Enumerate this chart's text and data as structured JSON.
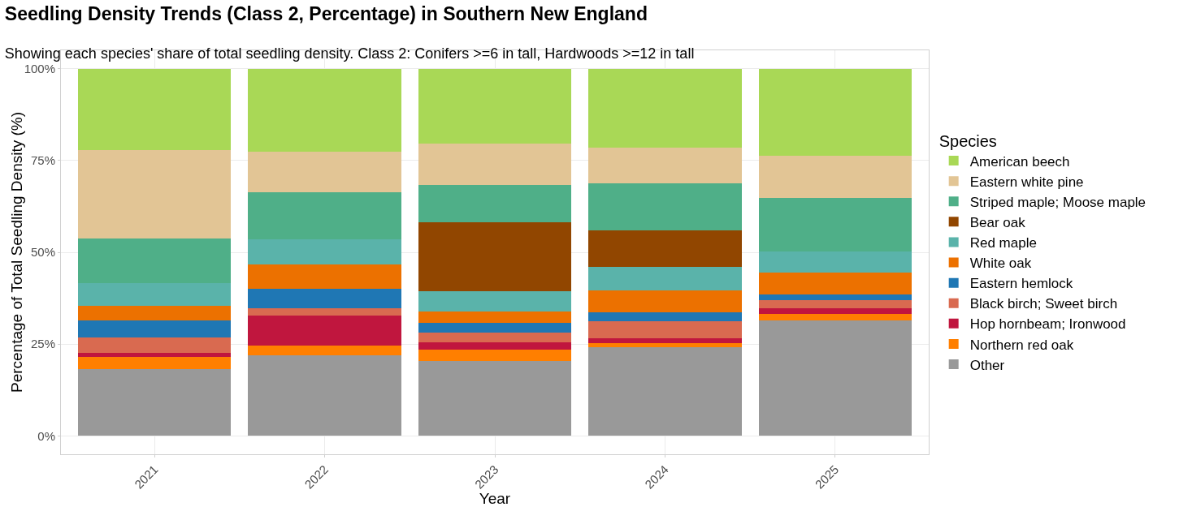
{
  "chart_data": {
    "type": "bar",
    "stacked": true,
    "title": "Seedling Density Trends (Class 2, Percentage) in Southern New England",
    "subtitle": "Showing each species' share of total seedling density. Class 2: Conifers >=6 in tall, Hardwoods >=12 in tall",
    "xlabel": "Year",
    "ylabel": "Percentage of Total Seedling Density (%)",
    "legend_title": "Species",
    "categories": [
      "2021",
      "2022",
      "2023",
      "2024",
      "2025"
    ],
    "series": [
      {
        "name": "Other",
        "color": "#999999",
        "values": [
          18.1,
          22.0,
          20.4,
          24.2,
          31.4
        ]
      },
      {
        "name": "Northern red oak",
        "color": "#ff7f00",
        "values": [
          3.5,
          2.7,
          3.0,
          1.1,
          1.8
        ]
      },
      {
        "name": "Hop hornbeam; Ironwood",
        "color": "#c0163e",
        "values": [
          1.1,
          8.1,
          2.1,
          1.3,
          1.5
        ]
      },
      {
        "name": "Black birch; Sweet birch",
        "color": "#d96a50",
        "values": [
          4.0,
          2.0,
          2.7,
          4.6,
          2.3
        ]
      },
      {
        "name": "Eastern hemlock",
        "color": "#1f77b4",
        "values": [
          4.7,
          5.2,
          2.6,
          2.5,
          1.6
        ]
      },
      {
        "name": "White oak",
        "color": "#ec7100",
        "values": [
          4.0,
          6.7,
          3.0,
          6.0,
          5.8
        ]
      },
      {
        "name": "Red maple",
        "color": "#5ab3aa",
        "values": [
          6.3,
          6.8,
          5.5,
          6.3,
          5.8
        ]
      },
      {
        "name": "Bear oak",
        "color": "#914600",
        "values": [
          0,
          0,
          18.8,
          9.9,
          0
        ]
      },
      {
        "name": "Striped maple; Moose maple",
        "color": "#4faf88",
        "values": [
          12.0,
          12.8,
          10.3,
          12.9,
          14.7
        ]
      },
      {
        "name": "Eastern white pine",
        "color": "#e2c595",
        "values": [
          24.2,
          11.0,
          11.2,
          9.8,
          11.3
        ]
      },
      {
        "name": "American beech",
        "color": "#a9d856",
        "values": [
          22.1,
          22.7,
          20.4,
          21.4,
          23.8
        ]
      }
    ],
    "ylim": [
      -5,
      105
    ],
    "yticks": [
      {
        "value": 0,
        "label": "0%"
      },
      {
        "value": 25,
        "label": "25%"
      },
      {
        "value": 50,
        "label": "50%"
      },
      {
        "value": 75,
        "label": "75%"
      },
      {
        "value": 100,
        "label": "100%"
      }
    ],
    "grid": true,
    "legend": "right"
  }
}
